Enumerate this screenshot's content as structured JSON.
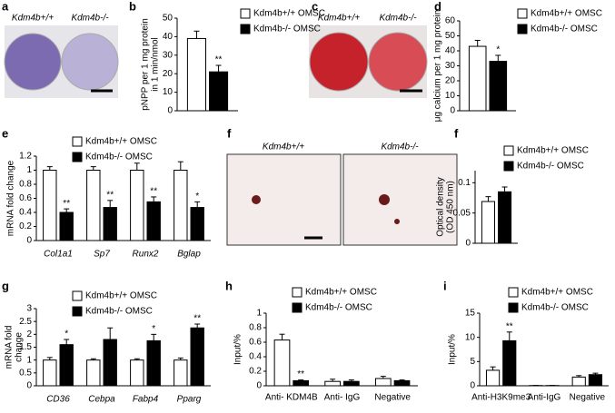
{
  "images": [
    {
      "panel": "a",
      "labels": [
        "Kdm4b+/+",
        "Kdm4b-/-"
      ]
    },
    {
      "panel": "c",
      "labels": [
        "Kdm4b+/+",
        "Kdm4b-/-"
      ]
    },
    {
      "panel": "f",
      "labels": [
        "Kdm4b+/+",
        "Kdm4b-/-"
      ]
    }
  ],
  "chart_data": [
    {
      "type": "bar",
      "panel": "b",
      "ylabel": [
        "pNPP per 1 mg protein",
        "in 1 min/nmol"
      ],
      "ylim": [
        0,
        50
      ],
      "yticks": [
        0,
        10,
        20,
        30,
        40,
        50
      ],
      "series": [
        {
          "name": "Kdm4b+/+ OMSC",
          "color": "#ffffff",
          "values": [
            39
          ],
          "errors": [
            4
          ],
          "significance": [
            null
          ]
        },
        {
          "name": "Kdm4b-/- OMSC",
          "color": "#000000",
          "values": [
            21
          ],
          "errors": [
            3.5
          ],
          "significance": [
            "**"
          ]
        }
      ]
    },
    {
      "type": "bar",
      "panel": "d",
      "ylabel": [
        "μg calcium per 1 mg protein"
      ],
      "ylim": [
        0,
        60
      ],
      "yticks": [
        0,
        10,
        20,
        30,
        40,
        50,
        60
      ],
      "series": [
        {
          "name": "Kdm4b+/+ OMSC",
          "color": "#ffffff",
          "values": [
            43
          ],
          "errors": [
            4
          ],
          "significance": [
            null
          ]
        },
        {
          "name": "Kdm4b-/- OMSC",
          "color": "#000000",
          "values": [
            33
          ],
          "errors": [
            4
          ],
          "significance": [
            "*"
          ]
        }
      ]
    },
    {
      "type": "bar",
      "panel": "e",
      "ylabel": [
        "mRNA fold change"
      ],
      "ylim": [
        0,
        1.2
      ],
      "yticks": [
        0,
        0.2,
        0.4,
        0.6,
        0.8,
        1,
        1.2
      ],
      "categories": [
        "Col1a1",
        "Sp7",
        "Runx2",
        "Bglap"
      ],
      "series": [
        {
          "name": "Kdm4b+/+ OMSC",
          "color": "#ffffff",
          "values": [
            1,
            1,
            1,
            1
          ],
          "errors": [
            0.05,
            0.05,
            0.1,
            0.12
          ],
          "significance": [
            null,
            null,
            null,
            null
          ]
        },
        {
          "name": "Kdm4b-/- OMSC",
          "color": "#000000",
          "values": [
            0.4,
            0.47,
            0.55,
            0.47
          ],
          "errors": [
            0.05,
            0.1,
            0.07,
            0.08
          ],
          "significance": [
            "**",
            "**",
            "**",
            "*"
          ]
        }
      ]
    },
    {
      "type": "bar",
      "panel": "f",
      "ylabel": [
        "Optical density",
        "(OD 450 nm)"
      ],
      "ylim": [
        0,
        0.12
      ],
      "yticks": [
        0,
        0.05,
        0.1
      ],
      "series": [
        {
          "name": "Kdm4b+/+ OMSC",
          "color": "#ffffff",
          "values": [
            0.069
          ],
          "errors": [
            0.008
          ],
          "significance": [
            null
          ]
        },
        {
          "name": "Kdm4b-/- OMSC",
          "color": "#000000",
          "values": [
            0.085
          ],
          "errors": [
            0.008
          ],
          "significance": [
            null
          ]
        }
      ]
    },
    {
      "type": "bar",
      "panel": "g",
      "ylabel": [
        "mRNA fold",
        "change"
      ],
      "ylim": [
        0,
        3
      ],
      "yticks": [
        0,
        0.5,
        1,
        1.5,
        2,
        2.5,
        3
      ],
      "categories": [
        "CD36",
        "Cebpa",
        "Fabp4",
        "Pparg"
      ],
      "series": [
        {
          "name": "Kdm4b+/+ OMSC",
          "color": "#ffffff",
          "values": [
            1,
            1,
            1,
            1
          ],
          "errors": [
            0.1,
            0.05,
            0.05,
            0.08
          ],
          "significance": [
            null,
            null,
            null,
            null
          ]
        },
        {
          "name": "Kdm4b-/- OMSC",
          "color": "#000000",
          "values": [
            1.6,
            1.8,
            1.75,
            2.25
          ],
          "errors": [
            0.2,
            0.45,
            0.25,
            0.15
          ],
          "significance": [
            "*",
            null,
            "*",
            "**"
          ]
        }
      ]
    },
    {
      "type": "bar",
      "panel": "h",
      "ylabel": [
        "Input/%"
      ],
      "ylim": [
        0,
        1
      ],
      "yticks": [
        0,
        0.2,
        0.4,
        0.6,
        0.8,
        1
      ],
      "categories": [
        "Anti- KDM4B",
        "Anti- IgG",
        "Negative"
      ],
      "series": [
        {
          "name": "Kdm4b+/+ OMSC",
          "color": "#ffffff",
          "values": [
            0.63,
            0.06,
            0.1
          ],
          "errors": [
            0.08,
            0.03,
            0.03
          ],
          "significance": [
            null,
            null,
            null
          ]
        },
        {
          "name": "Kdm4b-/- OMSC",
          "color": "#000000",
          "values": [
            0.07,
            0.06,
            0.07
          ],
          "errors": [
            0.01,
            0.02,
            0.01
          ],
          "significance": [
            "**",
            null,
            null
          ]
        }
      ]
    },
    {
      "type": "bar",
      "panel": "i",
      "ylabel": [
        "Input/%"
      ],
      "ylim": [
        0,
        15
      ],
      "yticks": [
        0,
        5,
        10,
        15
      ],
      "categories": [
        "Anti-H3K9me3",
        "Anti-IgG",
        "Negative"
      ],
      "series": [
        {
          "name": "Kdm4b+/+ OMSC",
          "color": "#ffffff",
          "values": [
            3.2,
            0.05,
            1.8
          ],
          "errors": [
            0.7,
            0.02,
            0.3
          ],
          "significance": [
            null,
            null,
            null
          ]
        },
        {
          "name": "Kdm4b-/- OMSC",
          "color": "#000000",
          "values": [
            9.3,
            0.05,
            2.3
          ],
          "errors": [
            1.8,
            0.02,
            0.3
          ],
          "significance": [
            "**",
            null,
            null
          ]
        }
      ]
    }
  ]
}
